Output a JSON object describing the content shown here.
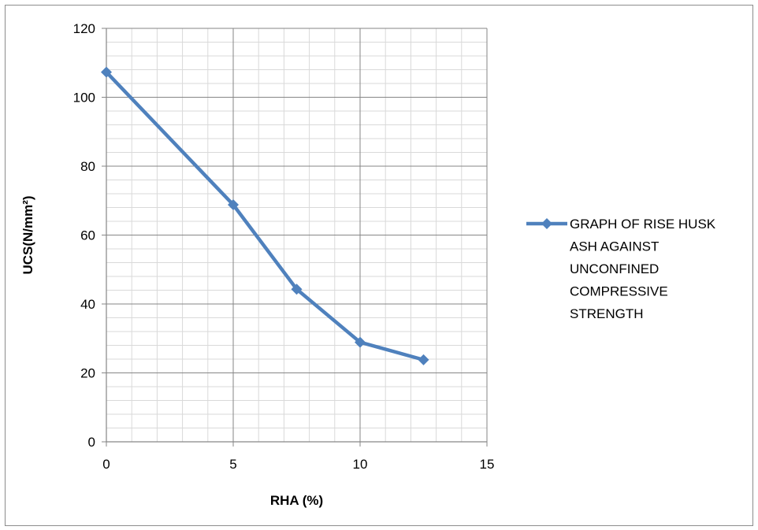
{
  "chart_data": {
    "type": "line",
    "title": "",
    "xlabel": "RHA (%)",
    "ylabel": "UCS(N/mm²)",
    "xlim": [
      0,
      15
    ],
    "ylim": [
      0,
      120
    ],
    "xticks": [
      0,
      5,
      10,
      15
    ],
    "yticks": [
      0,
      20,
      40,
      60,
      80,
      100,
      120
    ],
    "grid": true,
    "legend_position": "right",
    "series": [
      {
        "name": "GRAPH OF RISE HUSK ASH AGAINST UNCONFINED COMPRESSIVE STRENGTH",
        "legend_lines": [
          "GRAPH OF RISE HUSK",
          "ASH AGAINST",
          "UNCONFINED",
          "COMPRESSIVE",
          "STRENGTH"
        ],
        "color": "#4f81bd",
        "marker": "diamond",
        "x": [
          0,
          5,
          7.5,
          10,
          12.5
        ],
        "y": [
          107.3,
          68.8,
          44.3,
          28.9,
          23.8
        ]
      }
    ]
  }
}
